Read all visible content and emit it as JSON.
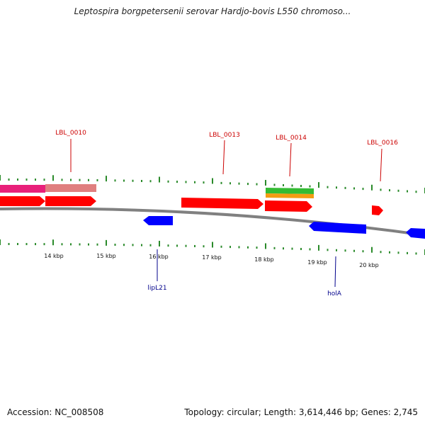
{
  "title": "Leptospira borgpetersenii serovar Hardjo-bovis L550 chromoso...",
  "footer": {
    "accession": "Accession: NC_008508",
    "summary": "Topology: circular; Length: 3,614,446 bp; Genes: 2,745"
  },
  "colors": {
    "backbone": "#808080",
    "forward_gene": "#ff0000",
    "reverse_gene": "#0000ff",
    "tick": "#2a8a2a",
    "gene_label": "#cc0000",
    "reverse_label": "#00008b",
    "magenta_feature": "#e8207a",
    "salmon_feature": "#e07f7f",
    "green_feature": "#33bb33",
    "orange_feature": "#f39c12"
  },
  "scale": {
    "unit": "kbp",
    "labels": [
      "14 kbp",
      "15 kbp",
      "16 kbp",
      "17 kbp",
      "18 kbp",
      "19 kbp",
      "20 kbp"
    ]
  },
  "forward_labels": [
    "LBL_0010",
    "LBL_0013",
    "LBL_0014",
    "LBL_0016"
  ],
  "reverse_labels": [
    "lipL21",
    "holA"
  ]
}
